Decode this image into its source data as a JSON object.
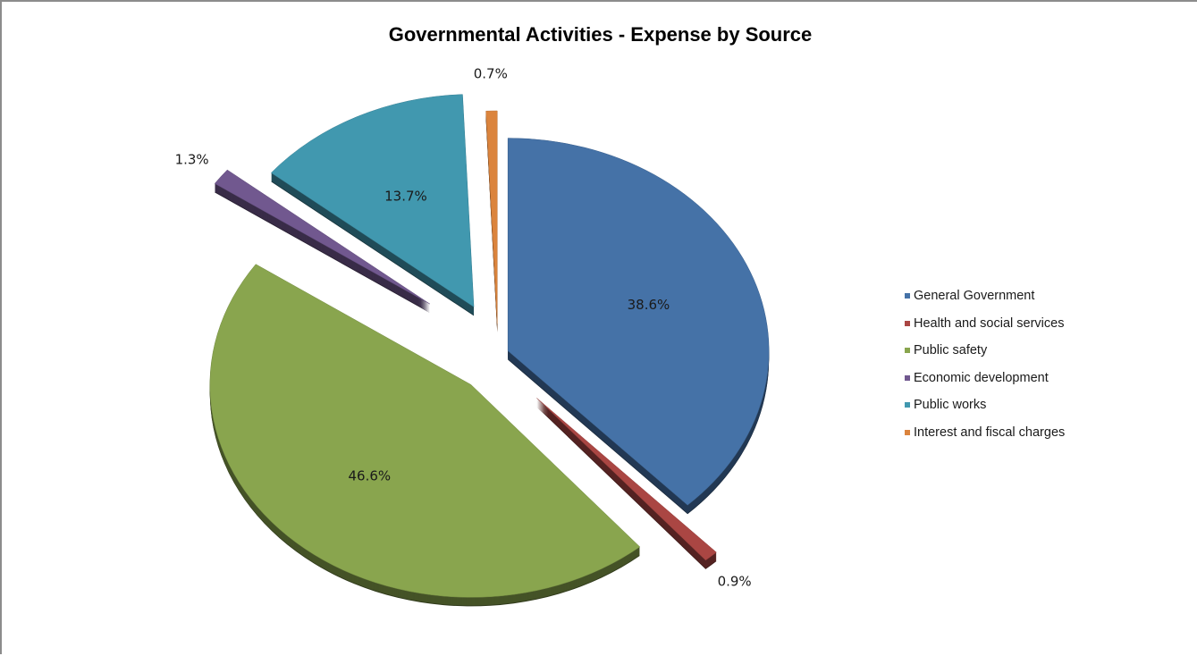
{
  "chart_data": {
    "type": "pie",
    "title": "Governmental Activities - Expense by Source",
    "slices": [
      {
        "label": "General Government",
        "value": 38.6,
        "value_label": "38.6%",
        "color": "#4572A7"
      },
      {
        "label": "Health and social services",
        "value": 0.9,
        "value_label": "0.9%",
        "color": "#AA4643"
      },
      {
        "label": "Public safety",
        "value": 46.6,
        "value_label": "46.6%",
        "color": "#89A54E"
      },
      {
        "label": "Economic development",
        "value": 1.3,
        "value_label": "1.3%",
        "color": "#71588F"
      },
      {
        "label": "Public works",
        "value": 13.7,
        "value_label": "13.7%",
        "color": "#4198AF"
      },
      {
        "label": "Interest and fiscal charges",
        "value": 0.7,
        "value_label": "0.7%",
        "color": "#DB843D"
      }
    ],
    "legend_position": "right",
    "exploded": true,
    "three_d": true
  }
}
